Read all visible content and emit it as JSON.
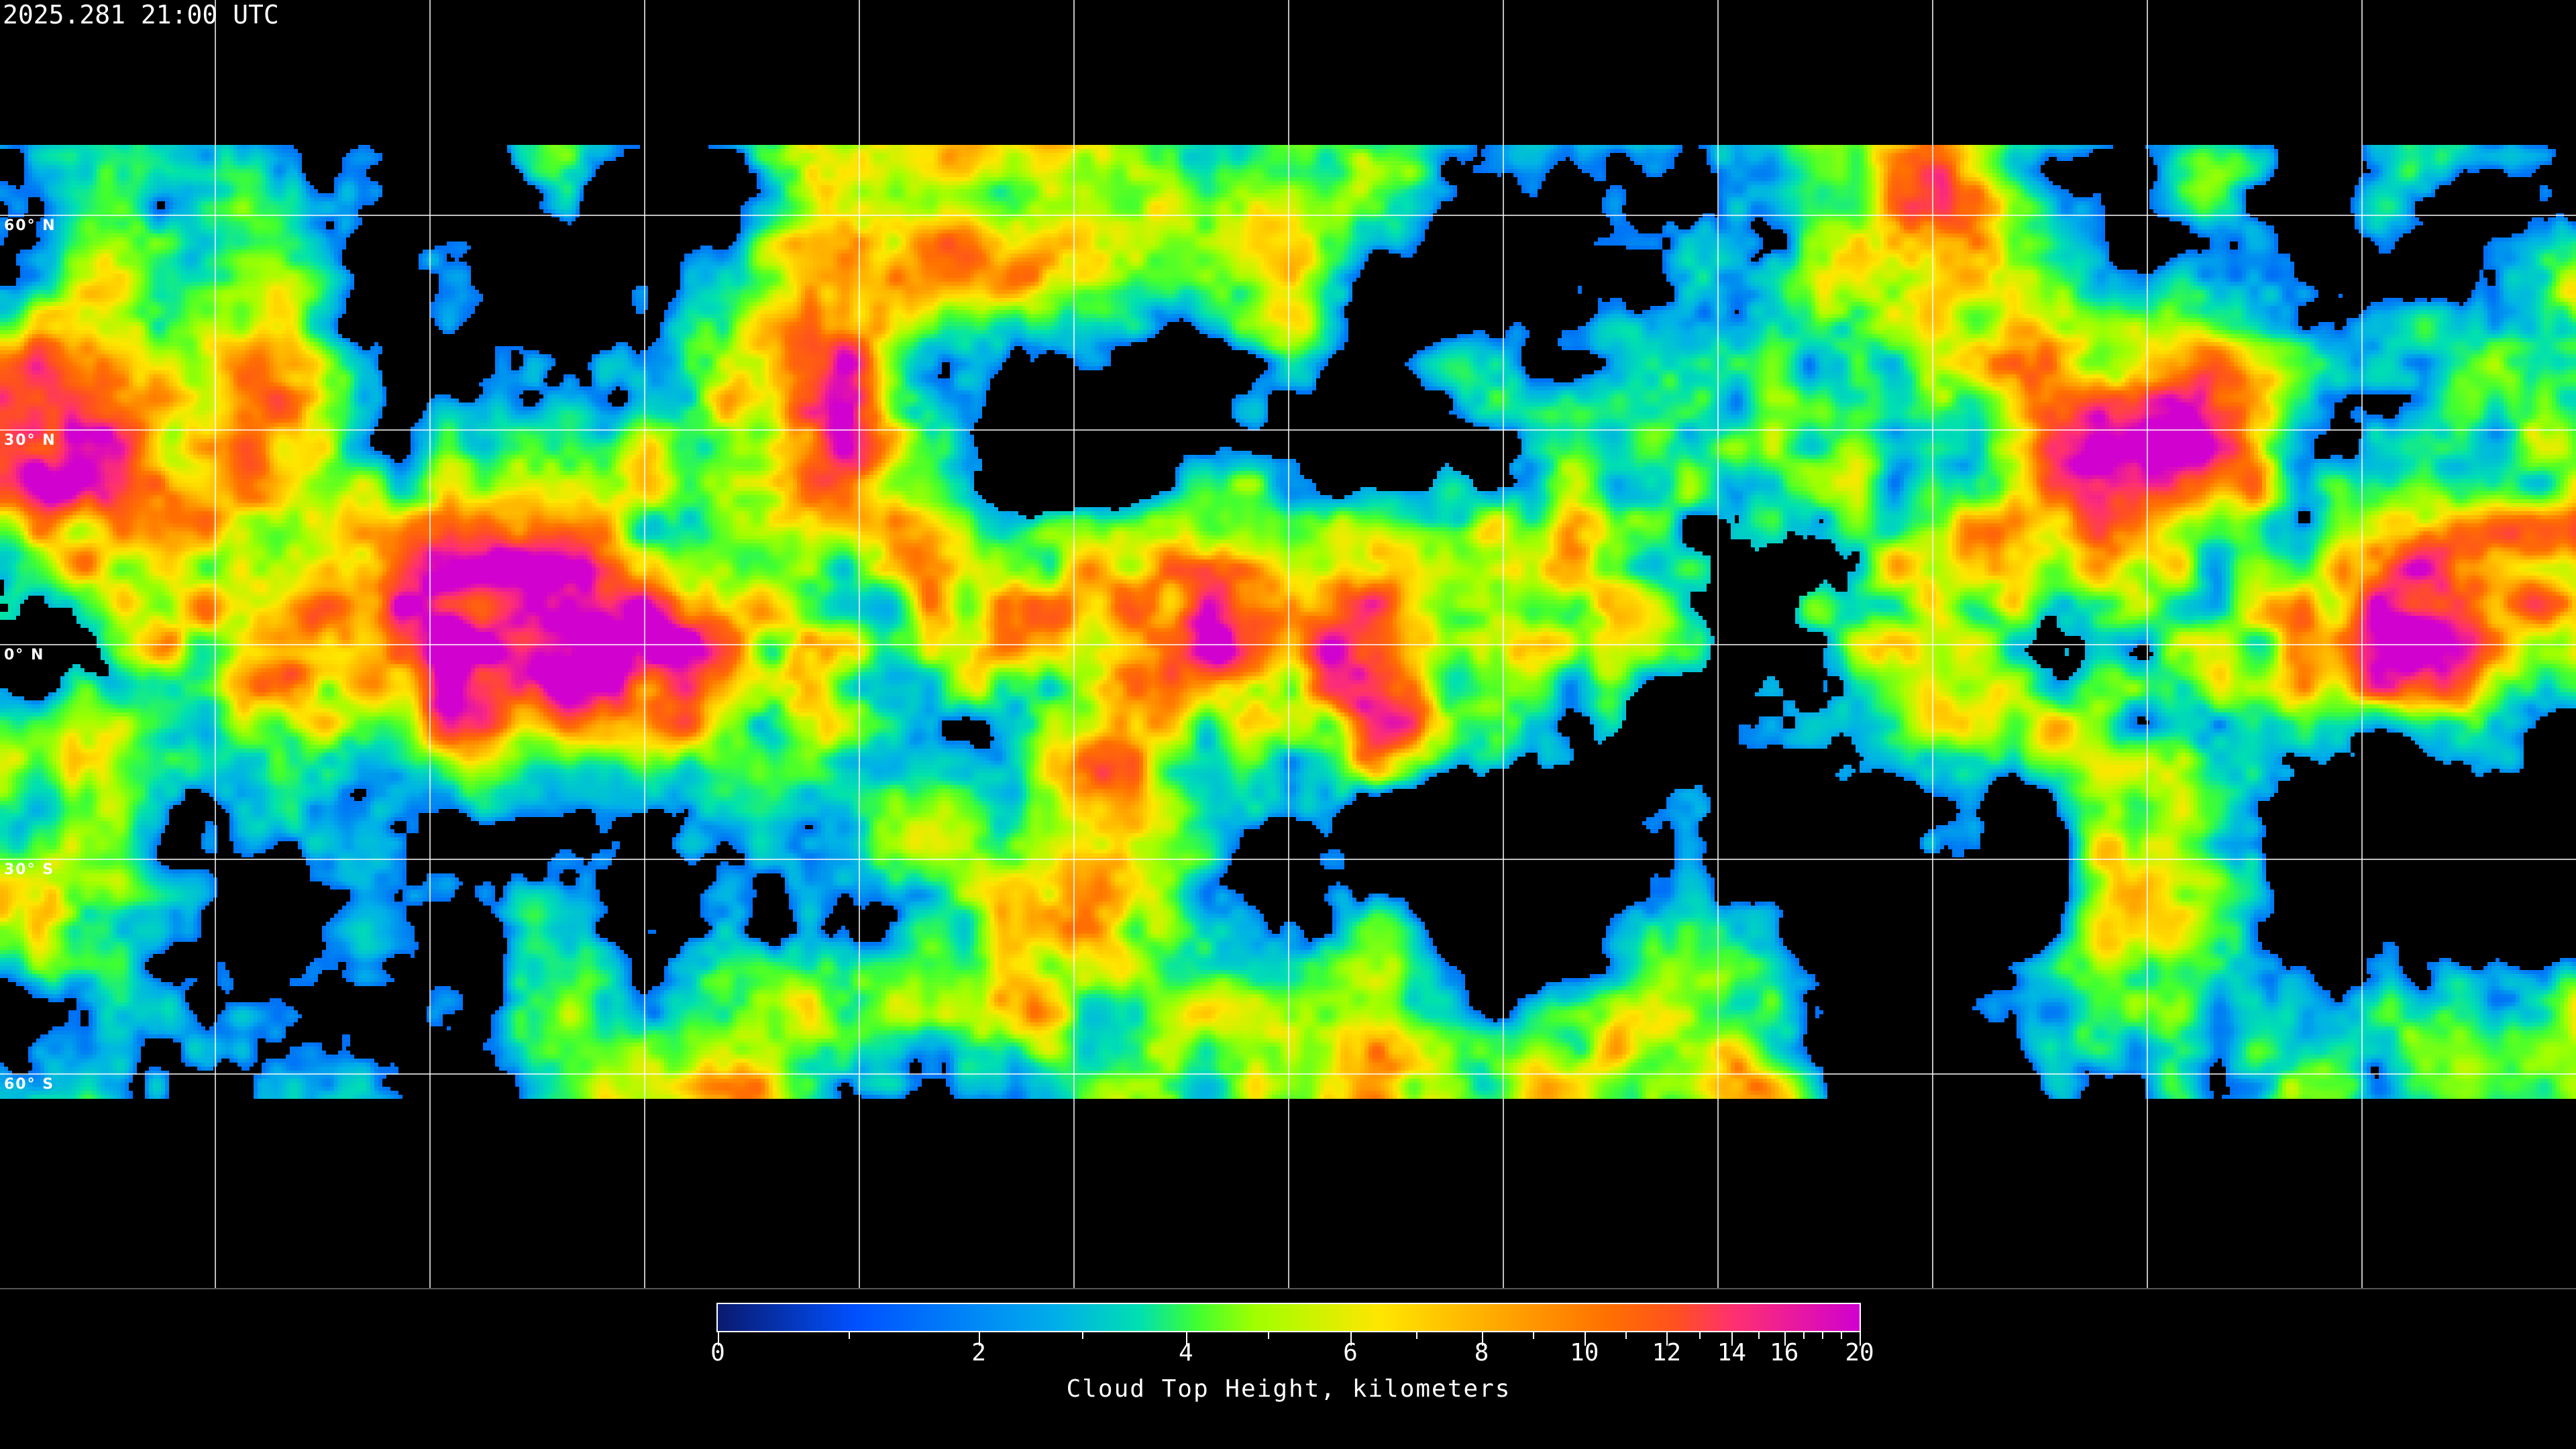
{
  "title": "2025.281 21:00 UTC",
  "map": {
    "projection": "equirectangular",
    "grid_longitudes_deg": [
      -150,
      -120,
      -90,
      -60,
      -30,
      0,
      30,
      60,
      90,
      120,
      150
    ],
    "latitude_labels": [
      {
        "lat": 60,
        "text": "60° N"
      },
      {
        "lat": 30,
        "text": "30° N"
      },
      {
        "lat": 0,
        "text": "0° N"
      },
      {
        "lat": -30,
        "text": "30° S"
      },
      {
        "lat": -60,
        "text": "60° S"
      }
    ]
  },
  "colorbar": {
    "title": "Cloud Top Height, kilometers",
    "range": [
      0,
      20
    ],
    "major_ticks": [
      "0",
      "2",
      "4",
      "6",
      "8",
      "10",
      "12",
      "14",
      "16",
      "20"
    ],
    "minor_ticks": [
      1,
      3,
      5,
      7,
      9,
      11,
      13,
      15,
      17,
      18,
      19
    ],
    "colors": [
      "#0a1a6e",
      "#0050ff",
      "#00b0e8",
      "#00e0b0",
      "#40ff30",
      "#a0ff00",
      "#ffe600",
      "#ffb000",
      "#ff7000",
      "#ff5020",
      "#ff3070",
      "#d000d0"
    ]
  }
}
